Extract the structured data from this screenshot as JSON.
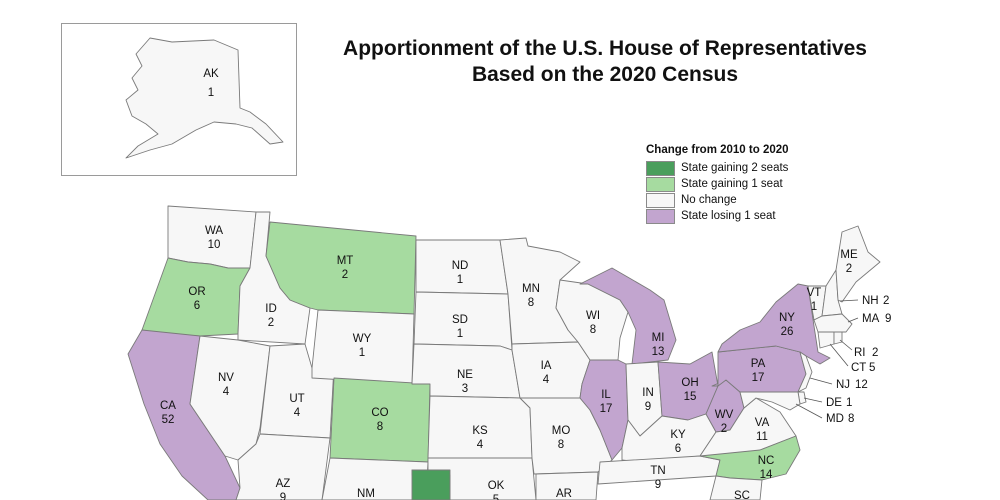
{
  "title": {
    "line1": "Apportionment of the U.S. House of Representatives",
    "line2": "Based on the 2020 Census"
  },
  "legend": {
    "title": "Change from 2010 to 2020",
    "items": [
      {
        "label": "State gaining 2 seats",
        "color": "#4a9e5c"
      },
      {
        "label": "State gaining 1 seat",
        "color": "#a6dba0"
      },
      {
        "label": "No change",
        "color": "#f7f7f7"
      },
      {
        "label": "State losing 1 seat",
        "color": "#c2a5cf"
      }
    ]
  },
  "colors": {
    "gain2": "#4a9e5c",
    "gain1": "#a6dba0",
    "none": "#f7f7f7",
    "lose1": "#c2a5cf",
    "border": "#7a7a7a"
  },
  "states": {
    "AK": {
      "abbr": "AK",
      "seats": "1",
      "change": "none"
    },
    "WA": {
      "abbr": "WA",
      "seats": "10",
      "change": "none"
    },
    "OR": {
      "abbr": "OR",
      "seats": "6",
      "change": "gain1"
    },
    "CA": {
      "abbr": "CA",
      "seats": "52",
      "change": "lose1"
    },
    "ID": {
      "abbr": "ID",
      "seats": "2",
      "change": "none"
    },
    "NV": {
      "abbr": "NV",
      "seats": "4",
      "change": "none"
    },
    "UT": {
      "abbr": "UT",
      "seats": "4",
      "change": "none"
    },
    "AZ": {
      "abbr": "AZ",
      "seats": "9",
      "change": "none"
    },
    "MT": {
      "abbr": "MT",
      "seats": "2",
      "change": "gain1"
    },
    "WY": {
      "abbr": "WY",
      "seats": "1",
      "change": "none"
    },
    "CO": {
      "abbr": "CO",
      "seats": "8",
      "change": "gain1"
    },
    "NM": {
      "abbr": "NM",
      "seats": "",
      "change": "none"
    },
    "ND": {
      "abbr": "ND",
      "seats": "1",
      "change": "none"
    },
    "SD": {
      "abbr": "SD",
      "seats": "1",
      "change": "none"
    },
    "NE": {
      "abbr": "NE",
      "seats": "3",
      "change": "none"
    },
    "KS": {
      "abbr": "KS",
      "seats": "4",
      "change": "none"
    },
    "OK": {
      "abbr": "OK",
      "seats": "5",
      "change": "none"
    },
    "TX": {
      "abbr": "",
      "seats": "",
      "change": "gain2"
    },
    "MN": {
      "abbr": "MN",
      "seats": "8",
      "change": "none"
    },
    "IA": {
      "abbr": "IA",
      "seats": "4",
      "change": "none"
    },
    "MO": {
      "abbr": "MO",
      "seats": "8",
      "change": "none"
    },
    "AR": {
      "abbr": "AR",
      "seats": "",
      "change": "none"
    },
    "WI": {
      "abbr": "WI",
      "seats": "8",
      "change": "none"
    },
    "IL": {
      "abbr": "IL",
      "seats": "17",
      "change": "lose1"
    },
    "MI": {
      "abbr": "MI",
      "seats": "13",
      "change": "lose1"
    },
    "IN": {
      "abbr": "IN",
      "seats": "9",
      "change": "none"
    },
    "OH": {
      "abbr": "OH",
      "seats": "15",
      "change": "lose1"
    },
    "KY": {
      "abbr": "KY",
      "seats": "6",
      "change": "none"
    },
    "TN": {
      "abbr": "TN",
      "seats": "9",
      "change": "none"
    },
    "WV": {
      "abbr": "WV",
      "seats": "2",
      "change": "lose1"
    },
    "VA": {
      "abbr": "VA",
      "seats": "11",
      "change": "none"
    },
    "NC": {
      "abbr": "NC",
      "seats": "14",
      "change": "gain1"
    },
    "SC": {
      "abbr": "SC",
      "seats": "",
      "change": "none"
    },
    "PA": {
      "abbr": "PA",
      "seats": "17",
      "change": "lose1"
    },
    "NY": {
      "abbr": "NY",
      "seats": "26",
      "change": "lose1"
    },
    "VT": {
      "abbr": "VT",
      "seats": "1",
      "change": "none"
    },
    "ME": {
      "abbr": "ME",
      "seats": "2",
      "change": "none"
    },
    "NH": {
      "abbr": "NH",
      "seats": "2",
      "change": "none"
    },
    "MA": {
      "abbr": "MA",
      "seats": "9",
      "change": "none"
    },
    "RI": {
      "abbr": "RI",
      "seats": "2",
      "change": "none"
    },
    "CT": {
      "abbr": "CT",
      "seats": "5",
      "change": "none"
    },
    "NJ": {
      "abbr": "NJ",
      "seats": "12",
      "change": "none"
    },
    "DE": {
      "abbr": "DE",
      "seats": "1",
      "change": "none"
    },
    "MD": {
      "abbr": "MD",
      "seats": "8",
      "change": "none"
    }
  }
}
